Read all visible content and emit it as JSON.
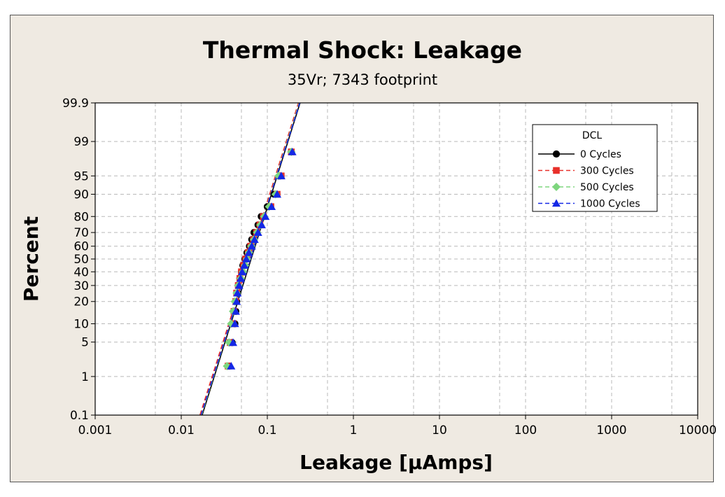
{
  "chart_data": {
    "type": "scatter",
    "title": "Thermal Shock: Leakage",
    "subtitle": "35Vr; 7343 footprint",
    "xlabel": "Leakage [µAmps]",
    "ylabel": "Percent",
    "x_scale": "log",
    "y_scale": "probability",
    "xlim": [
      0.001,
      10000
    ],
    "ylim": [
      0.1,
      99.9
    ],
    "x_ticks": [
      0.001,
      0.01,
      0.1,
      1,
      10,
      100,
      1000,
      10000
    ],
    "x_tick_labels": [
      "0.001",
      "0.01",
      "0.1",
      "1",
      "10",
      "100",
      "1000",
      "10000"
    ],
    "y_ticks": [
      0.1,
      1,
      5,
      10,
      20,
      30,
      40,
      50,
      60,
      70,
      80,
      90,
      95,
      99,
      99.9
    ],
    "y_tick_labels": [
      "0.1",
      "1",
      "5",
      "10",
      "20",
      "30",
      "40",
      "50",
      "60",
      "70",
      "80",
      "90",
      "95",
      "99",
      "99.9"
    ],
    "grid": true,
    "legend": {
      "title": "DCL",
      "position": "top-right"
    },
    "series": [
      {
        "name": "0 Cycles",
        "color": "#000000",
        "marker": "circle",
        "line": "solid",
        "fit_line": [
          [
            0.0175,
            0.1
          ],
          [
            0.24,
            99.9
          ]
        ],
        "x": [
          0.036,
          0.039,
          0.042,
          0.043,
          0.044,
          0.045,
          0.046,
          0.048,
          0.05,
          0.052,
          0.055,
          0.058,
          0.062,
          0.066,
          0.07,
          0.078,
          0.085,
          0.1,
          0.12,
          0.14,
          0.19
        ],
        "y": [
          1.7,
          4.9,
          10,
          15,
          20,
          25,
          30,
          35,
          40,
          45,
          50,
          55,
          60,
          65,
          70,
          75,
          80,
          85,
          90,
          95,
          98.3
        ]
      },
      {
        "name": "300 Cycles",
        "color": "#e8302a",
        "marker": "square",
        "line": "dashed",
        "fit_line": [
          [
            0.0165,
            0.1
          ],
          [
            0.23,
            99.9
          ]
        ],
        "x": [
          0.035,
          0.037,
          0.04,
          0.041,
          0.043,
          0.044,
          0.046,
          0.048,
          0.05,
          0.053,
          0.056,
          0.06,
          0.064,
          0.069,
          0.075,
          0.082,
          0.09,
          0.11,
          0.13,
          0.145,
          0.19
        ],
        "y": [
          1.7,
          4.9,
          10,
          15,
          20,
          25,
          30,
          35,
          40,
          45,
          50,
          55,
          60,
          65,
          70,
          75,
          80,
          85,
          90,
          95,
          98.3
        ]
      },
      {
        "name": "500 Cycles",
        "color": "#7ed67e",
        "marker": "diamond",
        "line": "dashed",
        "fit_line": [
          [
            0.0172,
            0.1
          ],
          [
            0.235,
            99.9
          ]
        ],
        "x": [
          0.034,
          0.036,
          0.038,
          0.04,
          0.042,
          0.044,
          0.046,
          0.049,
          0.052,
          0.055,
          0.058,
          0.061,
          0.065,
          0.07,
          0.076,
          0.083,
          0.092,
          0.105,
          0.125,
          0.135,
          0.19
        ],
        "y": [
          1.7,
          4.9,
          10,
          15,
          20,
          25,
          30,
          35,
          40,
          45,
          50,
          55,
          60,
          65,
          70,
          75,
          80,
          85,
          90,
          95,
          98.3
        ]
      },
      {
        "name": "1000 Cycles",
        "color": "#1428e6",
        "marker": "triangle",
        "line": "dashed",
        "fit_line": [
          [
            0.017,
            0.1
          ],
          [
            0.238,
            99.9
          ]
        ],
        "x": [
          0.038,
          0.04,
          0.042,
          0.043,
          0.044,
          0.045,
          0.047,
          0.049,
          0.051,
          0.054,
          0.057,
          0.061,
          0.066,
          0.071,
          0.078,
          0.086,
          0.095,
          0.112,
          0.13,
          0.145,
          0.195
        ],
        "y": [
          1.7,
          4.9,
          10,
          15,
          20,
          25,
          30,
          35,
          40,
          45,
          50,
          55,
          60,
          65,
          70,
          75,
          80,
          85,
          90,
          95,
          98.3
        ]
      }
    ]
  }
}
